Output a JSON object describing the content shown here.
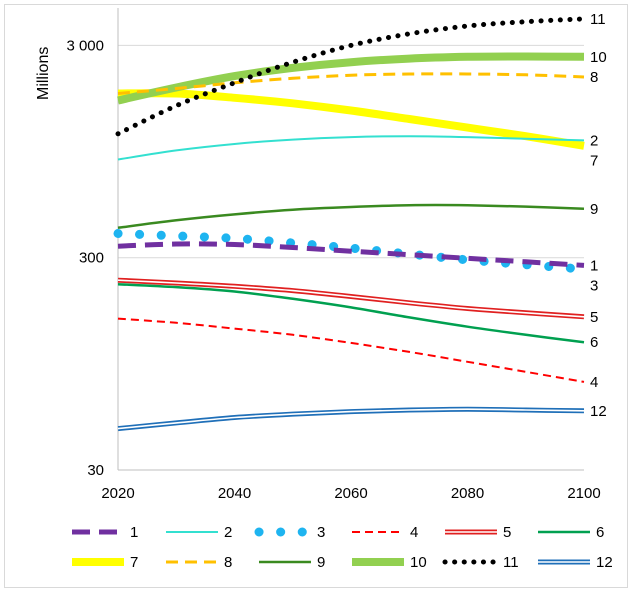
{
  "chart_data": {
    "type": "line",
    "title": "",
    "ylabel": "Millions",
    "xlabel": "",
    "y_scale": "log",
    "ylim": [
      30,
      4500
    ],
    "xlim": [
      2020,
      2100
    ],
    "x_ticks": [
      2020,
      2040,
      2060,
      2080,
      2100
    ],
    "x_tick_labels": [
      "2020",
      "2040",
      "2060",
      "2080",
      "2100"
    ],
    "y_ticks": [
      30,
      300,
      3000
    ],
    "y_tick_labels": [
      "30",
      "300",
      "3 000"
    ],
    "grid": "horizontal",
    "legend_position": "bottom",
    "x": [
      2020,
      2030,
      2040,
      2050,
      2060,
      2070,
      2080,
      2090,
      2100
    ],
    "series": [
      {
        "name": "1",
        "end_label": "1",
        "color": "#7030a0",
        "style": "dash-thick",
        "values": [
          340,
          348,
          346,
          335,
          322,
          310,
          298,
          287,
          276
        ]
      },
      {
        "name": "2",
        "end_label": "2",
        "color": "#33e0d0",
        "style": "solid-thin",
        "values": [
          870,
          960,
          1030,
          1080,
          1110,
          1120,
          1110,
          1090,
          1070
        ]
      },
      {
        "name": "3",
        "end_label": "3",
        "color": "#1eb4f0",
        "style": "dots",
        "values": [
          390,
          380,
          370,
          352,
          333,
          312,
          293,
          278,
          265
        ]
      },
      {
        "name": "4",
        "end_label": "4",
        "color": "#ff0000",
        "style": "dash-thin",
        "values": [
          155,
          148,
          139,
          130,
          119,
          108,
          97,
          87,
          78
        ]
      },
      {
        "name": "5",
        "end_label": "5",
        "color": "#e02020",
        "style": "double",
        "values": [
          235,
          228,
          220,
          210,
          197,
          184,
          173,
          165,
          158
        ]
      },
      {
        "name": "6",
        "end_label": "6",
        "color": "#00a050",
        "style": "solid-medium",
        "values": [
          225,
          218,
          208,
          192,
          175,
          157,
          142,
          130,
          120
        ]
      },
      {
        "name": "7",
        "end_label": "7",
        "color": "#ffff00",
        "style": "solid-thick",
        "values": [
          1780,
          1780,
          1700,
          1600,
          1480,
          1350,
          1230,
          1120,
          1010
        ]
      },
      {
        "name": "8",
        "end_label": "8",
        "color": "#ffc000",
        "style": "dash-medium",
        "values": [
          1780,
          1880,
          2000,
          2100,
          2170,
          2200,
          2200,
          2180,
          2130
        ]
      },
      {
        "name": "9",
        "end_label": "9",
        "color": "#3a8a20",
        "style": "solid-medium",
        "values": [
          415,
          450,
          480,
          505,
          520,
          530,
          530,
          522,
          510
        ]
      },
      {
        "name": "10",
        "end_label": "10",
        "color": "#92d050",
        "style": "solid-thick",
        "values": [
          1650,
          1900,
          2150,
          2350,
          2500,
          2600,
          2650,
          2660,
          2650
        ]
      },
      {
        "name": "11",
        "end_label": "11",
        "color": "#000000",
        "style": "dots-small",
        "values": [
          1150,
          1560,
          2000,
          2500,
          3000,
          3400,
          3700,
          3880,
          4000
        ]
      },
      {
        "name": "12",
        "end_label": "12",
        "color": "#1f6fb8",
        "style": "double",
        "values": [
          47,
          50,
          53,
          55,
          56.5,
          57.5,
          58,
          57.5,
          57
        ]
      }
    ]
  }
}
